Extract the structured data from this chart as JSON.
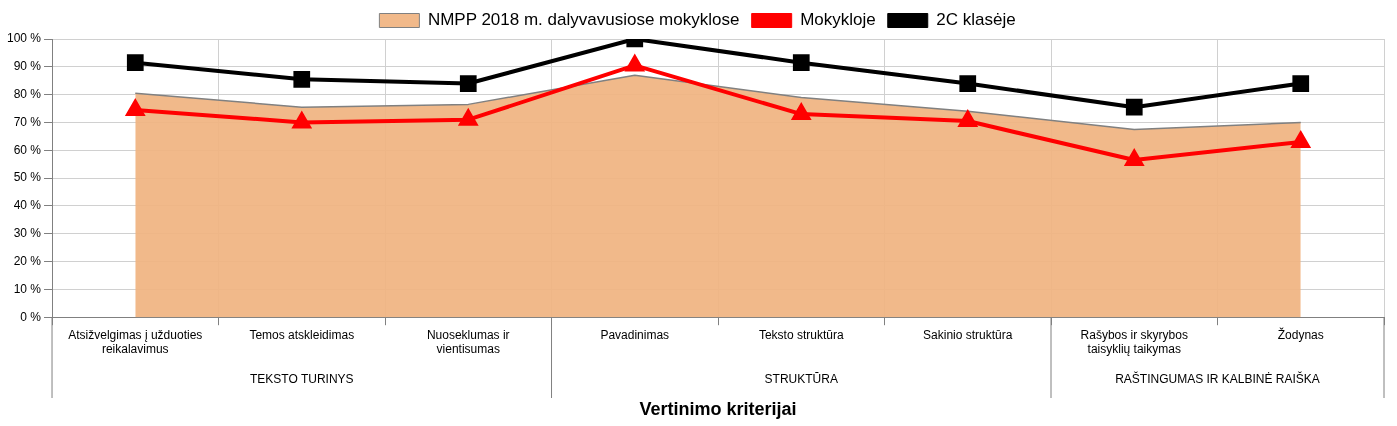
{
  "chart_data": {
    "type": "line",
    "xlabel": "Vertinimo kriterijai",
    "categories": [
      "Atsižvelgimas į užduoties reikalavimus",
      "Temos atskleidimas",
      "Nuoseklumas ir vientisumas",
      "Pavadinimas",
      "Teksto struktūra",
      "Sakinio struktūra",
      "Rašybos ir skyrybos taisyklių taikymas",
      "Žodynas"
    ],
    "series": [
      {
        "name": "NMPP 2018 m. dalyvavusiose mokyklose",
        "type": "area",
        "color": "#f0b482",
        "marker": "none",
        "values": [
          80.5,
          75.5,
          76.5,
          87,
          79,
          74,
          67.5,
          70
        ]
      },
      {
        "name": "Mokykloje",
        "type": "line",
        "color": "#ff0000",
        "marker": "triangle",
        "values": [
          74.5,
          70,
          71,
          90.5,
          73,
          70.5,
          56.5,
          63
        ]
      },
      {
        "name": "2C klasėje",
        "type": "line",
        "color": "#000000",
        "marker": "square",
        "values": [
          91.5,
          85.5,
          84,
          100,
          91.5,
          84,
          75.5,
          84
        ]
      }
    ],
    "annotations": [
      "TEKSTO TURINYS",
      "STRUKTŪRA",
      "RAŠTINGUMAS IR KALBINĖ RAIŠKA"
    ],
    "ylim": [
      0,
      100
    ],
    "yticks": [
      {
        "value": 0,
        "label": "0 %"
      },
      {
        "value": 10,
        "label": "10 %"
      },
      {
        "value": 20,
        "label": "20 %"
      },
      {
        "value": 30,
        "label": "30 %"
      },
      {
        "value": 40,
        "label": "40 %"
      },
      {
        "value": 50,
        "label": "50 %"
      },
      {
        "value": 60,
        "label": "60 %"
      },
      {
        "value": 70,
        "label": "70 %"
      },
      {
        "value": 80,
        "label": "80 %"
      },
      {
        "value": 90,
        "label": "90 %"
      },
      {
        "value": 100,
        "label": "100 %"
      }
    ],
    "grid": true,
    "legend": "top"
  }
}
